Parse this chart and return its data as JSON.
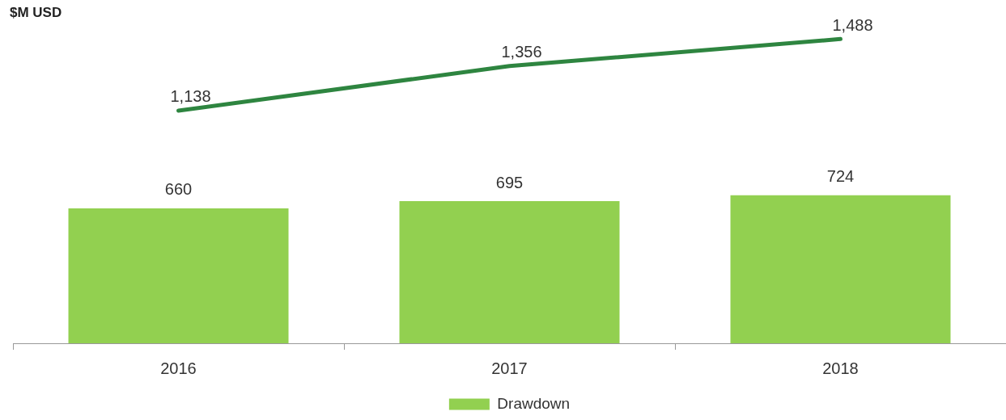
{
  "chart_data": {
    "type": "bar",
    "ylabel": "$M USD",
    "categories": [
      "2016",
      "2017",
      "2018"
    ],
    "series": [
      {
        "name": "Drawdown",
        "color": "#92d050",
        "values": [
          660,
          695,
          724
        ],
        "value_labels": [
          "660",
          "695",
          "724"
        ]
      },
      {
        "type": "line",
        "color": "#2e8540",
        "values": [
          1138,
          1356,
          1488
        ],
        "value_labels": [
          "1,138",
          "1,356",
          "1,488"
        ]
      }
    ],
    "legend": "bottom",
    "marker": "none",
    "line_style": "solid"
  }
}
